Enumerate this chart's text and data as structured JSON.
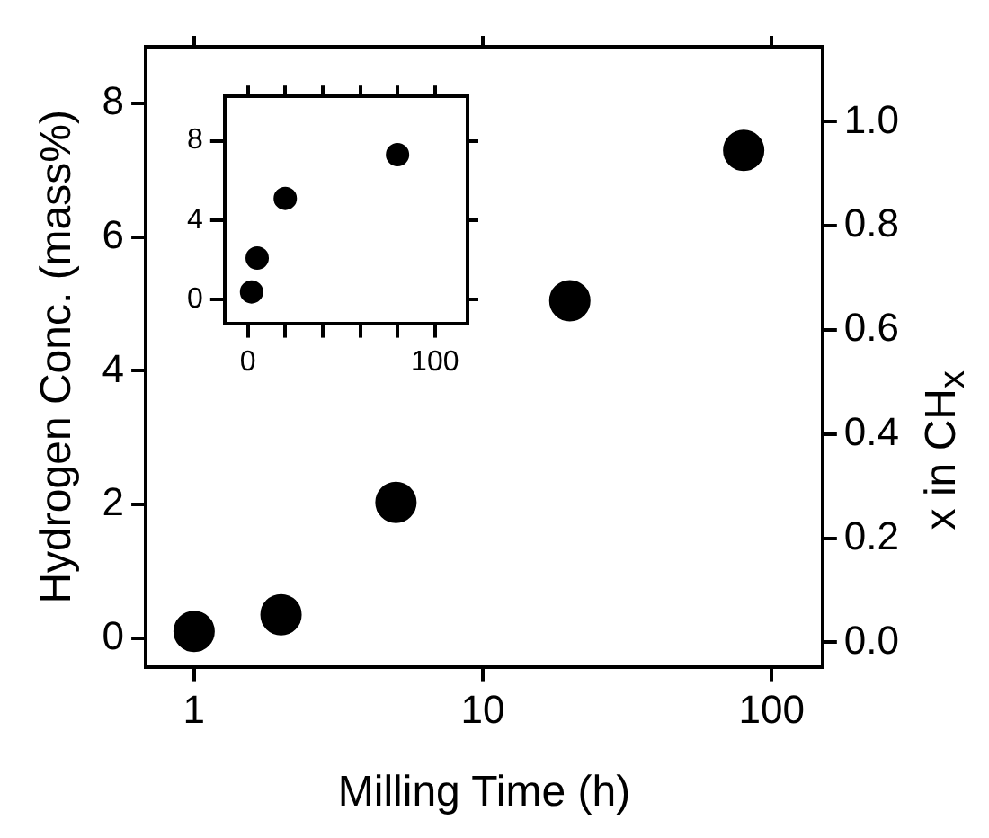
{
  "chart_data": [
    {
      "type": "scatter",
      "xlabel": "Milling Time (h)",
      "ylabel": "Hydrogen Conc. (mass%)",
      "y2label": "x in CH$_{x}$",
      "x": [
        1,
        2,
        5,
        20,
        80
      ],
      "values": [
        0.1,
        0.35,
        2.03,
        5.05,
        7.3
      ],
      "color": "#000000",
      "marker": "circle",
      "log": "x",
      "xlim": [
        0.68,
        150
      ],
      "xticks": [
        1,
        10,
        100
      ],
      "ylim": [
        -0.43,
        8.85
      ],
      "yticks": [
        0,
        2,
        4,
        6,
        8
      ],
      "y2lim": [
        -0.047,
        1.144
      ],
      "y2ticks": [
        {
          "value": 0,
          "label": "0.0"
        },
        {
          "value": 0.2,
          "label": "0.2"
        },
        {
          "value": 0.4,
          "label": "0.4"
        },
        {
          "value": 0.6,
          "label": "0.6"
        },
        {
          "value": 0.8,
          "label": "0.8"
        },
        {
          "value": 1,
          "label": "1.0"
        }
      ]
    },
    {
      "type": "scatter",
      "x": [
        2,
        5,
        20,
        80
      ],
      "values": [
        0.4,
        2.1,
        5.1,
        7.3
      ],
      "color": "#000000",
      "marker": "circle",
      "xlim": [
        -12.4,
        117.4
      ],
      "ylim": [
        -1.18,
        10.23
      ],
      "yticks": [
        0,
        4,
        8
      ],
      "xticks": [
        0,
        {
          "value": 20,
          "label": null
        },
        {
          "value": 40,
          "label": null
        },
        {
          "value": 60,
          "label": null
        },
        {
          "value": 80,
          "label": null
        },
        100
      ]
    }
  ]
}
